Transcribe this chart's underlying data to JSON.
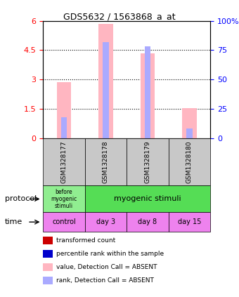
{
  "title": "GDS5632 / 1563868_a_at",
  "samples": [
    "GSM1328177",
    "GSM1328178",
    "GSM1328179",
    "GSM1328180"
  ],
  "bar_values": [
    2.85,
    5.85,
    4.35,
    1.55
  ],
  "rank_values": [
    0.18,
    0.82,
    0.78,
    0.08
  ],
  "ylim_left": [
    0,
    6
  ],
  "ylim_right": [
    0,
    100
  ],
  "yticks_left": [
    0,
    1.5,
    3.0,
    4.5,
    6.0
  ],
  "yticks_right": [
    0,
    25,
    50,
    75,
    100
  ],
  "ytick_labels_left": [
    "0",
    "1.5",
    "3",
    "4.5",
    "6"
  ],
  "ytick_labels_right": [
    "0",
    "25",
    "50",
    "75",
    "100%"
  ],
  "bar_color_absent": "#FFB6C1",
  "rank_color_absent": "#AAAAFF",
  "bar_color_present": "#CC0000",
  "rank_color_present": "#0000CC",
  "protocol_labels": [
    "before\nmyogenic\nstimuli",
    "myogenic stimuli"
  ],
  "protocol_colors": [
    "#90EE90",
    "#55DD55"
  ],
  "time_labels": [
    "control",
    "day 3",
    "day 8",
    "day 15"
  ],
  "time_color": "#EE82EE",
  "sample_box_color": "#C8C8C8",
  "legend_items": [
    {
      "color": "#CC0000",
      "label": "transformed count"
    },
    {
      "color": "#0000CC",
      "label": "percentile rank within the sample"
    },
    {
      "color": "#FFB6C1",
      "label": "value, Detection Call = ABSENT"
    },
    {
      "color": "#AAAAFF",
      "label": "rank, Detection Call = ABSENT"
    }
  ]
}
